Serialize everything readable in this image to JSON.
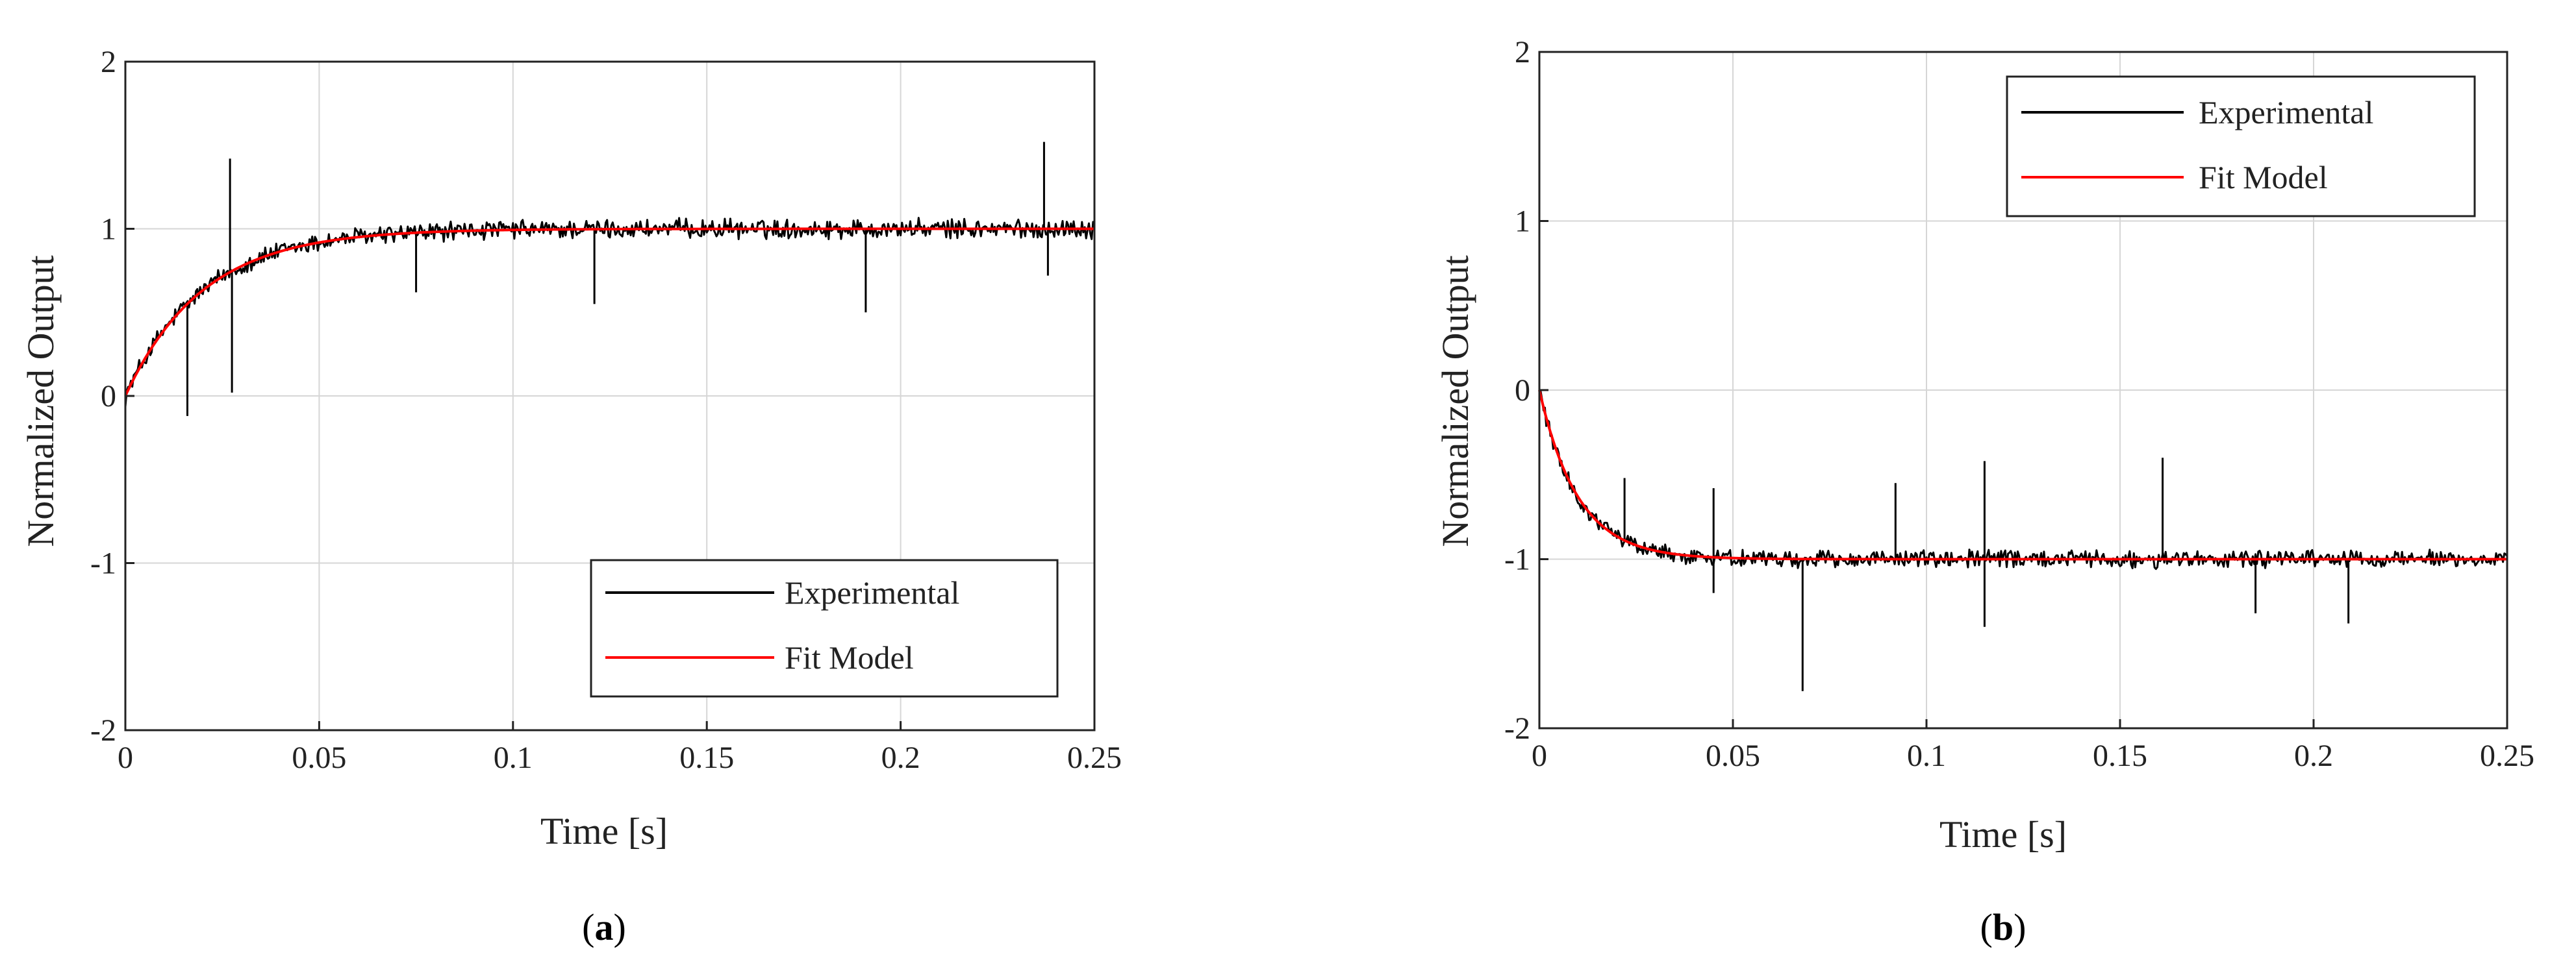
{
  "chart_data": [
    {
      "type": "line",
      "panel": "a",
      "caption_letter": "a",
      "xlabel": "Time [s]",
      "ylabel": "Normalized Output",
      "xlim": [
        0,
        0.25
      ],
      "ylim": [
        -2,
        2
      ],
      "xticks": [
        0,
        0.05,
        0.1,
        0.15,
        0.2,
        0.25
      ],
      "xtick_labels": [
        "0",
        "0.05",
        "0.1",
        "0.15",
        "0.2",
        "0.25"
      ],
      "yticks": [
        -2,
        -1,
        0,
        1,
        2
      ],
      "ytick_labels": [
        "-2",
        "-1",
        "0",
        "1",
        "2"
      ],
      "grid": true,
      "legend_position": "bottom-right",
      "series": [
        {
          "name": "Experimental",
          "color": "#000000",
          "model": {
            "final": 1.0,
            "tau": 0.02,
            "noise": 0.045
          },
          "spikes": [
            [
              0.016,
              -0.12
            ],
            [
              0.027,
              1.42
            ],
            [
              0.0275,
              0.02
            ],
            [
              0.075,
              0.62
            ],
            [
              0.121,
              0.55
            ],
            [
              0.191,
              0.5
            ],
            [
              0.237,
              1.52
            ],
            [
              0.238,
              0.72
            ]
          ]
        },
        {
          "name": "Fit Model",
          "color": "#ff0000",
          "model": {
            "final": 1.0,
            "tau": 0.02,
            "noise": 0
          }
        }
      ]
    },
    {
      "type": "line",
      "panel": "b",
      "caption_letter": "b",
      "xlabel": "Time [s]",
      "ylabel": "Normalized Output",
      "xlim": [
        0,
        0.25
      ],
      "ylim": [
        -2,
        2
      ],
      "xticks": [
        0,
        0.05,
        0.1,
        0.15,
        0.2,
        0.25
      ],
      "xtick_labels": [
        "0",
        "0.05",
        "0.1",
        "0.15",
        "0.2",
        "0.25"
      ],
      "yticks": [
        -2,
        -1,
        0,
        1,
        2
      ],
      "ytick_labels": [
        "-2",
        "-1",
        "0",
        "1",
        "2"
      ],
      "grid": true,
      "legend_position": "top-right",
      "series": [
        {
          "name": "Experimental",
          "color": "#000000",
          "model": {
            "final": -1.0,
            "tau": 0.01,
            "noise": 0.04
          },
          "spikes": [
            [
              0.022,
              -0.52
            ],
            [
              0.045,
              -0.58
            ],
            [
              0.045,
              -1.2
            ],
            [
              0.068,
              -1.78
            ],
            [
              0.092,
              -0.55
            ],
            [
              0.115,
              -0.42
            ],
            [
              0.115,
              -1.4
            ],
            [
              0.161,
              -0.4
            ],
            [
              0.185,
              -1.32
            ],
            [
              0.209,
              -1.38
            ]
          ]
        },
        {
          "name": "Fit Model",
          "color": "#ff0000",
          "model": {
            "final": -1.0,
            "tau": 0.01,
            "noise": 0
          }
        }
      ]
    }
  ]
}
